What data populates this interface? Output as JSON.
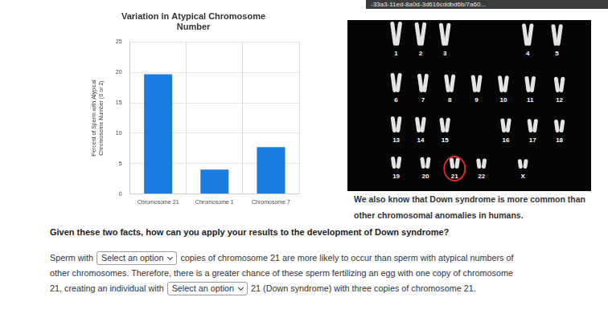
{
  "url": "-33a3-11ed-8a0d-3d616cddbd6b/7a60...",
  "chart_data": {
    "type": "bar",
    "title": [
      "Variation in Atypical Chromosome",
      "Number"
    ],
    "y_label": [
      "Percent of Sperm with Atypical",
      "Chromosome Number (0 or 2)"
    ],
    "categories": [
      "Chromosome 21",
      "Chromosome 1",
      "Chromosome 7"
    ],
    "values": [
      19.7,
      4,
      7.7
    ],
    "color": "#1a7be0",
    "ylim": [
      0,
      25
    ],
    "yticks": [
      0,
      5,
      10,
      15,
      20,
      25
    ],
    "grid": true
  },
  "karyotype": {
    "rows": [
      [
        "1",
        "2",
        "3",
        "4",
        "5"
      ],
      [
        "6",
        "7",
        "8",
        "9",
        "10",
        "11",
        "12"
      ],
      [
        "13",
        "14",
        "15",
        "16",
        "17",
        "18"
      ],
      [
        "19",
        "20",
        "21",
        "22",
        "X"
      ]
    ],
    "highlighted": "21"
  },
  "caption": [
    "We also know that Down syndrome is more common than",
    "other chromosomal anomalies in humans."
  ],
  "question": "Given these two facts, how can you apply your results to the development of Down syndrome?",
  "answer_lines": [
    [
      {
        "text": "Sperm with"
      },
      {
        "select": "Select an option"
      },
      {
        "text": "copies of chromosome 21 are more likely to occur than sperm with atypical numbers of"
      }
    ],
    [
      {
        "text": "other chromosomes. Therefore, there is a greater chance of these sperm fertilizing an egg with one copy of chromosome"
      }
    ],
    [
      {
        "text": "21, creating an individual with"
      },
      {
        "select": "Select an option"
      },
      {
        "text": "21 (Down syndrome) with three copies of chromosome 21."
      }
    ]
  ]
}
